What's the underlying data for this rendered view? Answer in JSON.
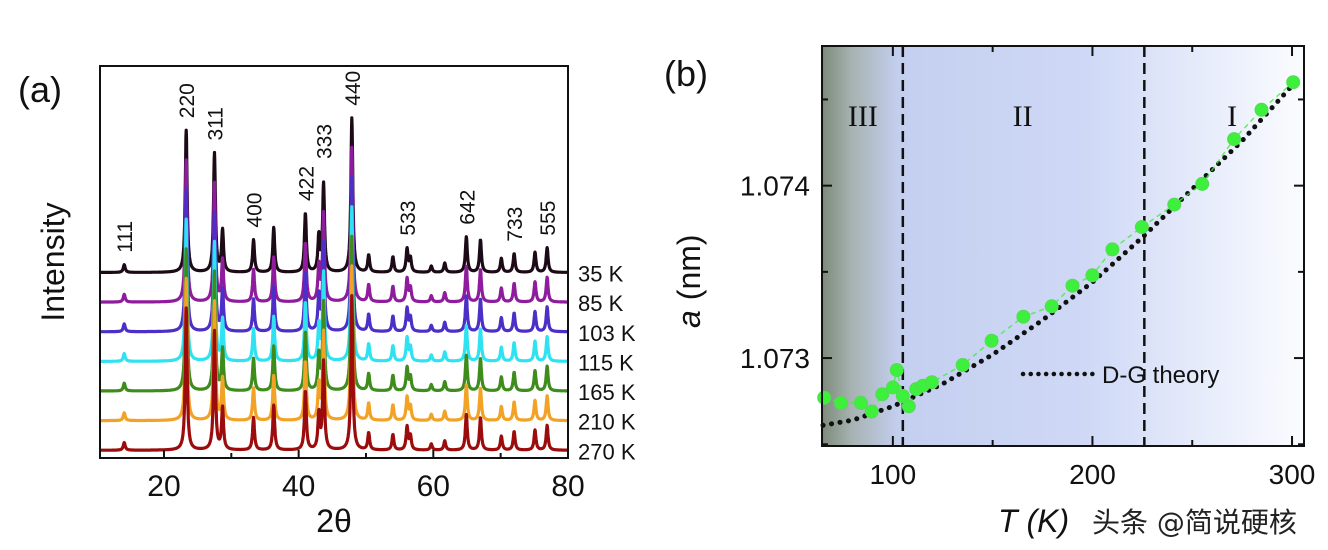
{
  "chart_data": [
    {
      "type": "line",
      "panel_label": "(a)",
      "xlabel": "2θ",
      "ylabel": "Intensity",
      "xlim": [
        10.5,
        80
      ],
      "ylim": [
        -5,
        249
      ],
      "xticks": [
        20,
        40,
        60,
        80
      ],
      "xminor": [
        30,
        50,
        70
      ],
      "grid": false,
      "stacked_offset_step": 19.2,
      "peaks_2theta": [
        14.1,
        23.3,
        27.5,
        28.7,
        33.3,
        36.3,
        41.0,
        43.0,
        43.7,
        47.9,
        50.4,
        54.0,
        56.1,
        56.6,
        59.7,
        61.7,
        64.9,
        67.0,
        70.1,
        72.0,
        75.1,
        76.9
      ],
      "peak_rel_intensity": [
        5,
        92,
        77,
        27,
        21,
        29,
        38,
        23,
        57,
        100,
        11,
        10,
        15,
        9,
        4,
        6,
        23,
        21,
        9,
        12,
        13,
        16
      ],
      "series": [
        {
          "name": "35 K",
          "color": "#1c0a16"
        },
        {
          "name": "85 K",
          "color": "#8e1c9c"
        },
        {
          "name": "103 K",
          "color": "#4b2fc6"
        },
        {
          "name": "115 K",
          "color": "#2ee2f2"
        },
        {
          "name": "165 K",
          "color": "#3d8c1c"
        },
        {
          "name": "210 K",
          "color": "#f2a224"
        },
        {
          "name": "270 K",
          "color": "#9c0c0c"
        }
      ],
      "annotations": [
        {
          "text": "111",
          "x": 14.1
        },
        {
          "text": "220",
          "x": 23.3
        },
        {
          "text": "311",
          "x": 27.5
        },
        {
          "text": "400",
          "x": 33.3
        },
        {
          "text": "422",
          "x": 41.0
        },
        {
          "text": "333",
          "x": 43.7
        },
        {
          "text": "440",
          "x": 47.9
        },
        {
          "text": "533",
          "x": 56.1
        },
        {
          "text": "642",
          "x": 64.9
        },
        {
          "text": "733",
          "x": 72.0
        },
        {
          "text": "555",
          "x": 76.9
        }
      ]
    },
    {
      "type": "scatter",
      "panel_label": "(b)",
      "xlabel": "T (K)",
      "ylabel_italic": "a",
      "ylabel_unit": "(nm)",
      "xlim": [
        64.5,
        306
      ],
      "ylim": [
        1.07249,
        1.07481
      ],
      "xticks": [
        100,
        200,
        300
      ],
      "xminor": [
        150,
        250
      ],
      "yticks": [
        "1.073",
        "1.074"
      ],
      "ytick_values": [
        1.073,
        1.074
      ],
      "yminor": [
        1.0725,
        1.0735,
        1.0745
      ],
      "grid": false,
      "regions": [
        {
          "label": "III",
          "x": 85
        },
        {
          "label": "II",
          "x": 165
        },
        {
          "label": "I",
          "x": 270
        }
      ],
      "boundaries": [
        105,
        226
      ],
      "point_color": "#3cf03c",
      "points": [
        [
          65.6,
          1.07277
        ],
        [
          74,
          1.07274
        ],
        [
          84,
          1.07274
        ],
        [
          89.4,
          1.07269
        ],
        [
          94.7,
          1.07279
        ],
        [
          100,
          1.07283
        ],
        [
          102,
          1.07293
        ],
        [
          105,
          1.07278
        ],
        [
          108,
          1.07272
        ],
        [
          111.7,
          1.07282
        ],
        [
          115,
          1.07284
        ],
        [
          119.5,
          1.07286
        ],
        [
          135,
          1.07296
        ],
        [
          149.5,
          1.0731
        ],
        [
          165.4,
          1.07324
        ],
        [
          179.6,
          1.0733
        ],
        [
          190,
          1.07342
        ],
        [
          200,
          1.07348
        ],
        [
          210,
          1.07363
        ],
        [
          224.8,
          1.07376
        ],
        [
          241,
          1.07389
        ],
        [
          255,
          1.07401
        ],
        [
          271,
          1.07427
        ],
        [
          284.7,
          1.07444
        ],
        [
          300.6,
          1.0746
        ]
      ],
      "theory": {
        "name": "D-G theory",
        "points": [
          [
            65,
            1.07261
          ],
          [
            80,
            1.07264
          ],
          [
            100,
            1.07272
          ],
          [
            125,
            1.07285
          ],
          [
            150,
            1.07302
          ],
          [
            175,
            1.07322
          ],
          [
            200,
            1.07344
          ],
          [
            225,
            1.0737
          ],
          [
            250,
            1.07398
          ],
          [
            275,
            1.07426
          ],
          [
            300,
            1.07458
          ]
        ]
      },
      "legend_placement": "bottom-right"
    }
  ],
  "watermark": "头条 @简说硬核"
}
